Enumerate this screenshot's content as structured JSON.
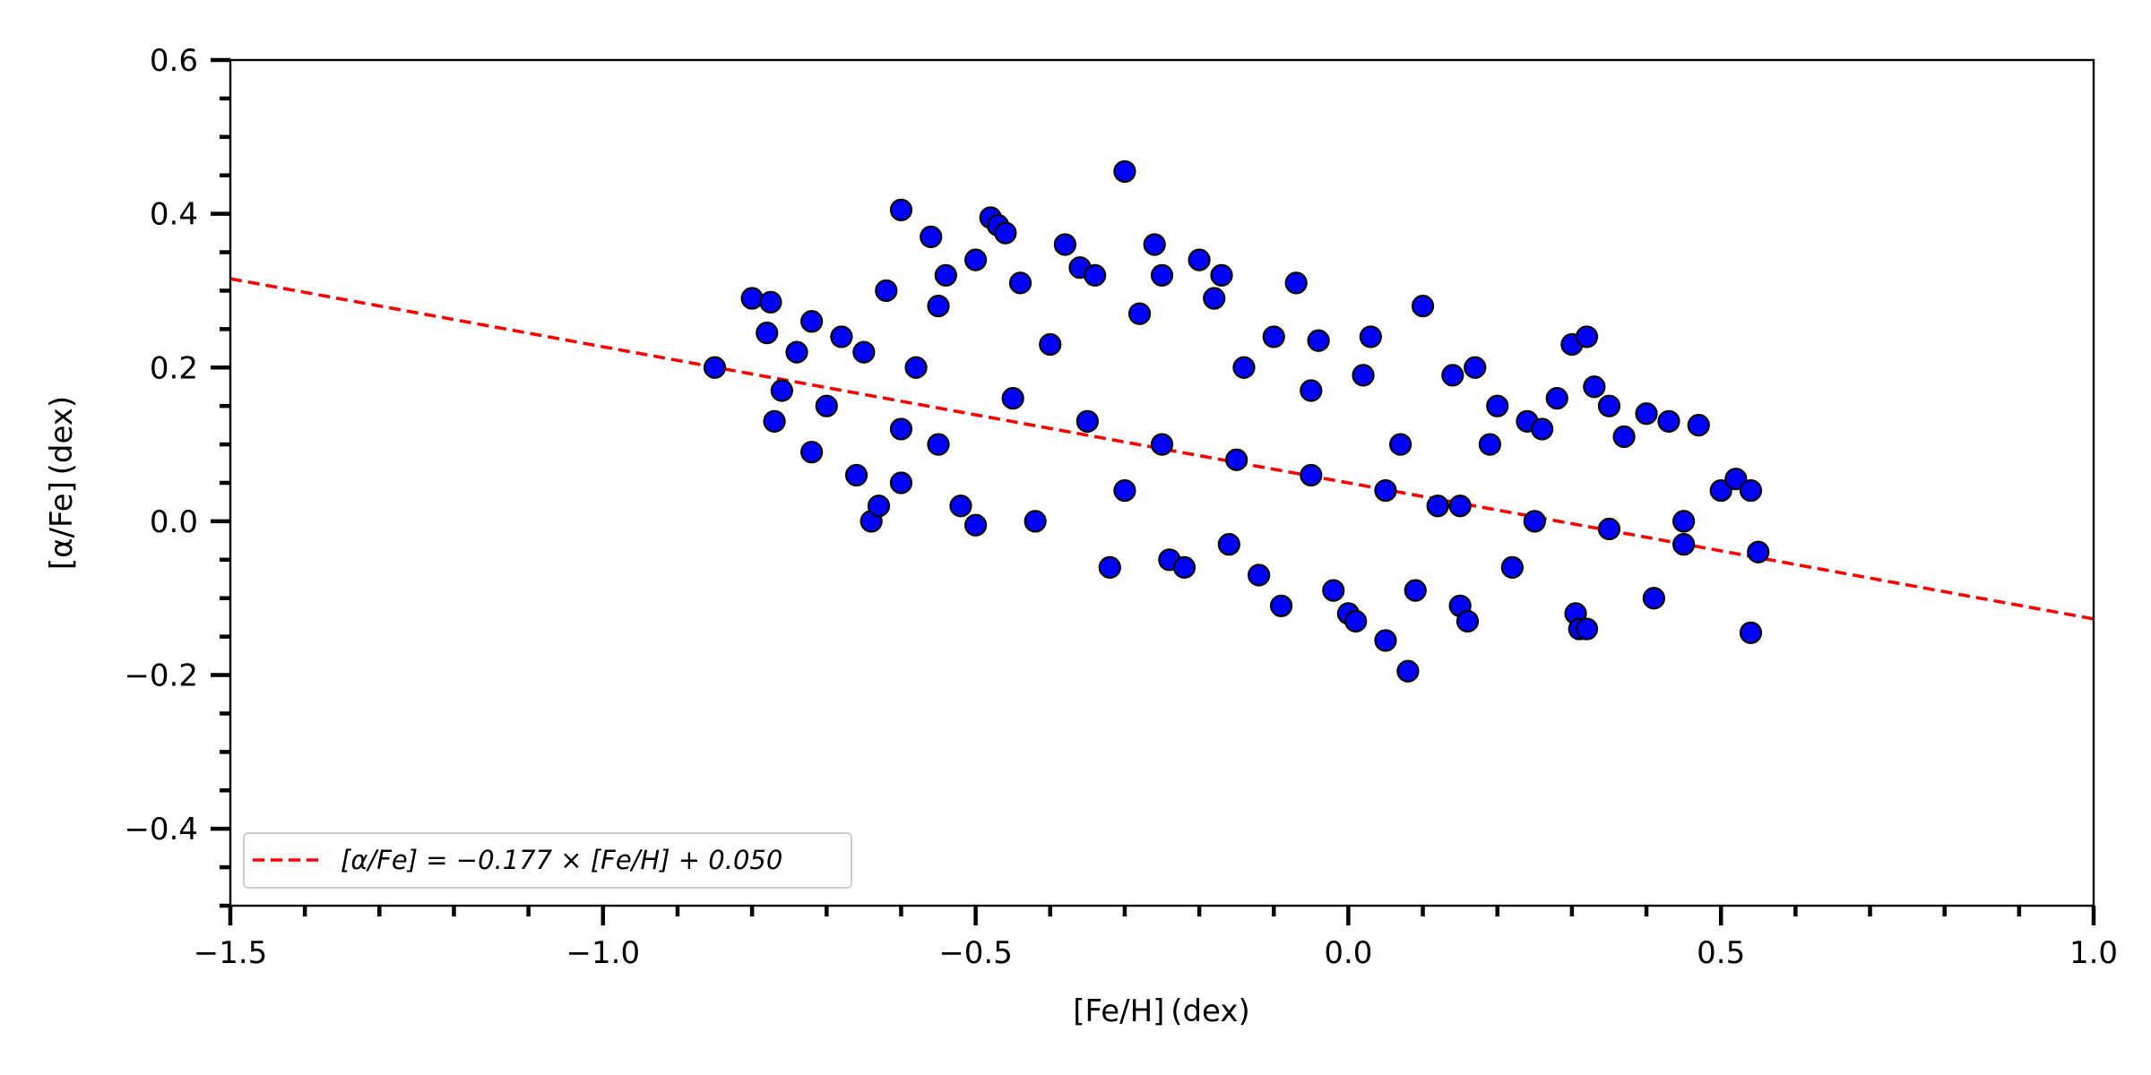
{
  "chart_data": {
    "type": "scatter",
    "title": "",
    "xlabel": "[Fe/H] (dex)",
    "ylabel": "[α/Fe] (dex)",
    "xlim": [
      -1.5,
      1.0
    ],
    "ylim": [
      -0.5,
      0.6
    ],
    "grid": false,
    "legend_position": "lower-left",
    "x_major_ticks": [
      -1.5,
      -1.0,
      -0.5,
      0.0,
      0.5,
      1.0
    ],
    "x_tick_labels": [
      "−1.5",
      "−1.0",
      "−0.5",
      "0.0",
      "0.5",
      "1.0"
    ],
    "y_major_ticks": [
      -0.4,
      -0.2,
      0.0,
      0.2,
      0.4,
      0.6
    ],
    "y_tick_labels": [
      "−0.4",
      "−0.2",
      "0.0",
      "0.2",
      "0.4",
      "0.6"
    ],
    "marker_color": "#0000ff",
    "marker_edge_color": "#000000",
    "fit_color": "#ff0000",
    "fit": {
      "slope": -0.177,
      "intercept": 0.05,
      "legend_label": "[α/Fe] = −0.177 × [Fe/H] + 0.050"
    },
    "series": [
      {
        "points": [
          [
            -0.85,
            0.2
          ],
          [
            -0.8,
            0.29
          ],
          [
            -0.78,
            0.245
          ],
          [
            -0.775,
            0.285
          ],
          [
            -0.77,
            0.13
          ],
          [
            -0.76,
            0.17
          ],
          [
            -0.74,
            0.22
          ],
          [
            -0.72,
            0.26
          ],
          [
            -0.72,
            0.09
          ],
          [
            -0.7,
            0.15
          ],
          [
            -0.68,
            0.24
          ],
          [
            -0.66,
            0.06
          ],
          [
            -0.64,
            0.0
          ],
          [
            -0.63,
            0.02
          ],
          [
            -0.62,
            0.3
          ],
          [
            -0.6,
            0.405
          ],
          [
            -0.6,
            0.05
          ],
          [
            -0.58,
            0.2
          ],
          [
            -0.56,
            0.37
          ],
          [
            -0.55,
            0.28
          ],
          [
            -0.54,
            0.32
          ],
          [
            -0.52,
            0.02
          ],
          [
            -0.5,
            -0.005
          ],
          [
            -0.5,
            0.34
          ],
          [
            -0.48,
            0.395
          ],
          [
            -0.47,
            0.385
          ],
          [
            -0.46,
            0.375
          ],
          [
            -0.44,
            0.31
          ],
          [
            -0.42,
            0.0
          ],
          [
            -0.4,
            0.23
          ],
          [
            -0.38,
            0.36
          ],
          [
            -0.36,
            0.33
          ],
          [
            -0.34,
            0.32
          ],
          [
            -0.32,
            -0.06
          ],
          [
            -0.3,
            0.455
          ],
          [
            -0.3,
            0.04
          ],
          [
            -0.28,
            0.27
          ],
          [
            -0.26,
            0.36
          ],
          [
            -0.25,
            0.32
          ],
          [
            -0.24,
            -0.05
          ],
          [
            -0.22,
            -0.06
          ],
          [
            -0.2,
            0.34
          ],
          [
            -0.18,
            0.29
          ],
          [
            -0.17,
            0.32
          ],
          [
            -0.16,
            -0.03
          ],
          [
            -0.14,
            0.2
          ],
          [
            -0.12,
            -0.07
          ],
          [
            -0.1,
            0.24
          ],
          [
            -0.09,
            -0.11
          ],
          [
            -0.07,
            0.31
          ],
          [
            -0.05,
            0.17
          ],
          [
            -0.04,
            0.235
          ],
          [
            -0.02,
            -0.09
          ],
          [
            0.0,
            -0.12
          ],
          [
            0.01,
            -0.13
          ],
          [
            0.02,
            0.19
          ],
          [
            0.03,
            0.24
          ],
          [
            0.05,
            -0.155
          ],
          [
            0.07,
            0.1
          ],
          [
            0.08,
            -0.195
          ],
          [
            0.09,
            -0.09
          ],
          [
            0.1,
            0.28
          ],
          [
            0.12,
            0.02
          ],
          [
            0.14,
            0.19
          ],
          [
            0.15,
            -0.11
          ],
          [
            0.16,
            -0.13
          ],
          [
            0.17,
            0.2
          ],
          [
            0.19,
            0.1
          ],
          [
            0.2,
            0.15
          ],
          [
            0.22,
            -0.06
          ],
          [
            0.24,
            0.13
          ],
          [
            0.26,
            0.12
          ],
          [
            0.28,
            0.16
          ],
          [
            0.3,
            0.23
          ],
          [
            0.305,
            -0.12
          ],
          [
            0.31,
            -0.14
          ],
          [
            0.32,
            0.24
          ],
          [
            0.32,
            -0.14
          ],
          [
            0.33,
            0.175
          ],
          [
            0.35,
            0.15
          ],
          [
            0.37,
            0.11
          ],
          [
            0.4,
            0.14
          ],
          [
            0.41,
            -0.1
          ],
          [
            0.43,
            0.13
          ],
          [
            0.45,
            0.0
          ],
          [
            0.47,
            0.125
          ],
          [
            0.5,
            0.04
          ],
          [
            0.52,
            0.055
          ],
          [
            0.54,
            0.04
          ],
          [
            0.54,
            -0.145
          ],
          [
            0.55,
            -0.04
          ],
          [
            -0.65,
            0.22
          ],
          [
            -0.6,
            0.12
          ],
          [
            -0.55,
            0.1
          ],
          [
            -0.45,
            0.16
          ],
          [
            -0.35,
            0.13
          ],
          [
            -0.25,
            0.1
          ],
          [
            -0.15,
            0.08
          ],
          [
            -0.05,
            0.06
          ],
          [
            0.05,
            0.04
          ],
          [
            0.15,
            0.02
          ],
          [
            0.25,
            0.0
          ],
          [
            0.35,
            -0.01
          ],
          [
            0.45,
            -0.03
          ]
        ]
      }
    ]
  }
}
